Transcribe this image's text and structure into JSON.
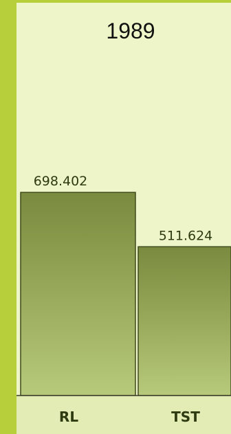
{
  "chart_data": {
    "type": "bar",
    "title": "1989",
    "categories": [
      "RL",
      "TST"
    ],
    "values": [
      698.402,
      511.624
    ],
    "value_labels": [
      "698.402",
      "511.624"
    ],
    "ylim": [
      0,
      1000
    ],
    "grid": false,
    "legend": "none"
  },
  "colors": {
    "frame": "#b6cf3a",
    "panel": "#eef5c8",
    "bar_top": "#7a8a3e",
    "bar_bottom": "#b7c97a",
    "axis_band": "#e2ecb4"
  }
}
